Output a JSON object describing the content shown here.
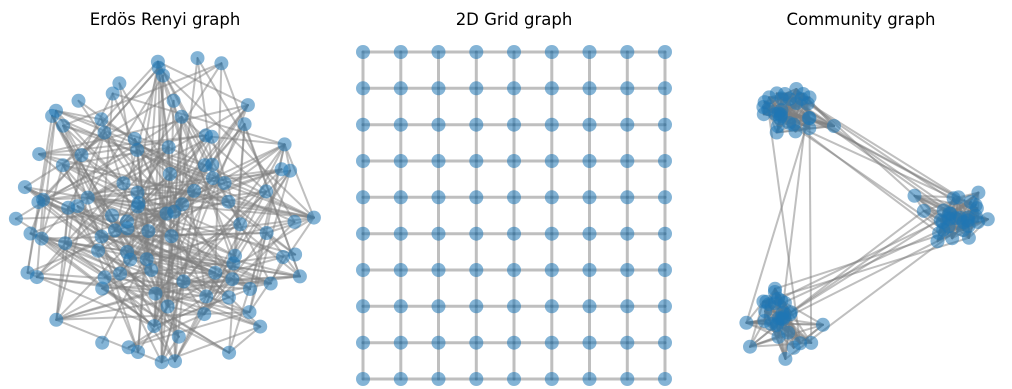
{
  "figure": {
    "panels": [
      {
        "id": "erdos",
        "title": "Erdös Renyi graph",
        "kind": "erdos-renyi",
        "node_count": 100,
        "edge_probability": 0.06
      },
      {
        "id": "grid",
        "title": "2D Grid graph",
        "kind": "grid-2d",
        "rows": 10,
        "cols": 9
      },
      {
        "id": "community",
        "title": "Community graph",
        "kind": "community",
        "communities": 3,
        "nodes_per_community": 30,
        "p_in": 0.35,
        "p_out": 0.01
      }
    ],
    "colors": {
      "node": "#1f77b4",
      "node_opacity": 0.55,
      "edge": "#808080",
      "edge_opacity": 0.5
    }
  }
}
